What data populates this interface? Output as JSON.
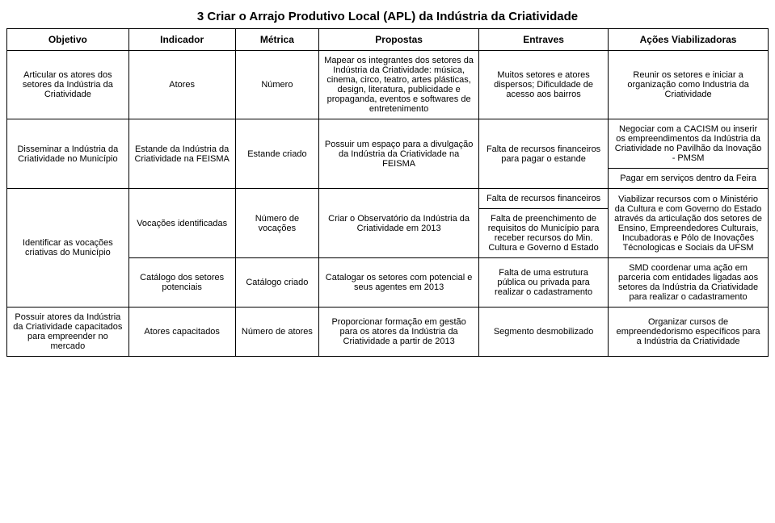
{
  "title": "3 Criar o Arrajo Produtivo Local (APL) da Indústria da Criatividade",
  "headers": {
    "c0": "Objetivo",
    "c1": "Indicador",
    "c2": "Métrica",
    "c3": "Propostas",
    "c4": "Entraves",
    "c5": "Ações Viabilizadoras"
  },
  "rows": {
    "r1": {
      "objetivo": "Articular os atores dos setores da Indústria da Criatividade",
      "indicador": "Atores",
      "metrica": "Número",
      "propostas": "Mapear os integrantes dos setores da Indústria da Criatividade: música, cinema, circo, teatro, artes plásticas, design, literatura, publicidade e propaganda, eventos e softwares de entretenimento",
      "entraves": "Muitos setores e atores dispersos;\nDificuldade de acesso aos bairros",
      "acoes": "Reunir os setores e iniciar a organização como Industria da Criatividade"
    },
    "r2": {
      "objetivo": "Disseminar a Indústria da Criatividade no Município",
      "indicador": "Estande da Indústria da Criatividade na FEISMA",
      "metrica": "Estande criado",
      "propostas": "Possuir um espaço para a divulgação da Indústria da Criatividade na FEISMA",
      "entraves": "Falta de recursos financeiros para pagar o estande",
      "acoes_a": "Negociar com a CACISM ou inserir os empreendimentos da Indústria da Criatividade no Pavilhão da Inovação - PMSM",
      "acoes_b": "Pagar em serviços dentro da Feira"
    },
    "r3": {
      "objetivo": "Identificar as vocações criativas do Município",
      "indicador_a": "Vocações identificadas",
      "metrica_a": "Número de vocações",
      "propostas_a": "Criar o Observatório da Indústria da Criatividade em  2013",
      "entraves_a1": "Falta de recursos financeiros",
      "entraves_a2": "Falta de preenchimento de requisitos do Município para receber recursos do Min. Cultura e Governo d Estado",
      "acoes_a": "Viabilizar recursos com o Ministério da Cultura e com Governo do Estado através da articulação dos setores de Ensino, Empreendedores Culturais, Incubadoras e Pólo de Inovações Técnologicas e Sociais da UFSM",
      "indicador_b": "Catálogo dos setores potenciais",
      "metrica_b": "Catálogo criado",
      "propostas_b": "Catalogar os setores com potencial e seus agentes em 2013",
      "entraves_b": "Falta de uma estrutura pública ou privada para realizar o cadastramento",
      "acoes_b": "SMD coordenar uma ação em parceria com entidades ligadas aos setores da Indústria da Criatividade para realizar o cadastramento"
    },
    "r4": {
      "objetivo": "Possuir atores da Indústria da Criatividade capacitados para empreender no mercado",
      "indicador": "Atores capacitados",
      "metrica": "Número de atores",
      "propostas": "Proporcionar formação em gestão para os atores da Indústria da Criatividade a partir de 2013",
      "entraves": "Segmento desmobilizado",
      "acoes": "Organizar cursos de empreendedorismo específicos para a Indústria da Criatividade"
    }
  }
}
